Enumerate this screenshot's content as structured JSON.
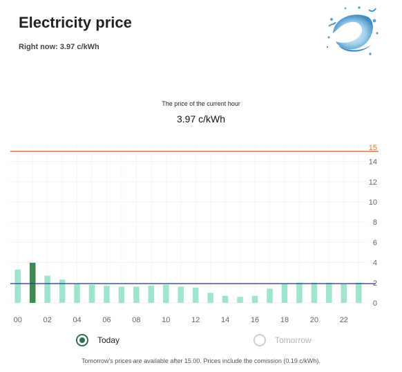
{
  "header": {
    "title": "Electricity price",
    "subtitle": "Right now: 3.97 c/kWh"
  },
  "current": {
    "label": "The price of the current hour",
    "value": "3.97 c/kWh"
  },
  "colors": {
    "bar": "#9fe3d0",
    "bar_current": "#3a8a52",
    "threshold_line": "#e1723d",
    "average_line": "#1f3f87"
  },
  "chart_data": {
    "type": "bar",
    "categories": [
      "00",
      "01",
      "02",
      "03",
      "04",
      "05",
      "06",
      "07",
      "08",
      "09",
      "10",
      "11",
      "12",
      "13",
      "14",
      "15",
      "16",
      "17",
      "18",
      "19",
      "20",
      "21",
      "22",
      "23"
    ],
    "values": [
      3.3,
      3.97,
      2.7,
      2.3,
      1.9,
      1.8,
      1.7,
      1.6,
      1.6,
      1.7,
      1.8,
      1.6,
      1.5,
      1.0,
      0.7,
      0.6,
      0.7,
      1.4,
      1.9,
      2.0,
      2.0,
      2.0,
      1.9,
      2.0
    ],
    "highlight_index": 1,
    "x_tick_labels": [
      "00",
      "02",
      "04",
      "06",
      "08",
      "10",
      "12",
      "14",
      "16",
      "18",
      "20",
      "22"
    ],
    "y_tick_labels": [
      "0",
      "2",
      "4",
      "6",
      "8",
      "10",
      "12",
      "14"
    ],
    "ylim": [
      0,
      15.5
    ],
    "threshold": {
      "value": 15,
      "label": "15"
    },
    "average": {
      "value": 1.9
    },
    "grid": true
  },
  "toggle": {
    "today_label": "Today",
    "tomorrow_label": "Tomorrow",
    "selected": "today"
  },
  "footnote": "Tomorrow's prices are available after 15.00. Prices include the comission (0.19 c/kWh)."
}
